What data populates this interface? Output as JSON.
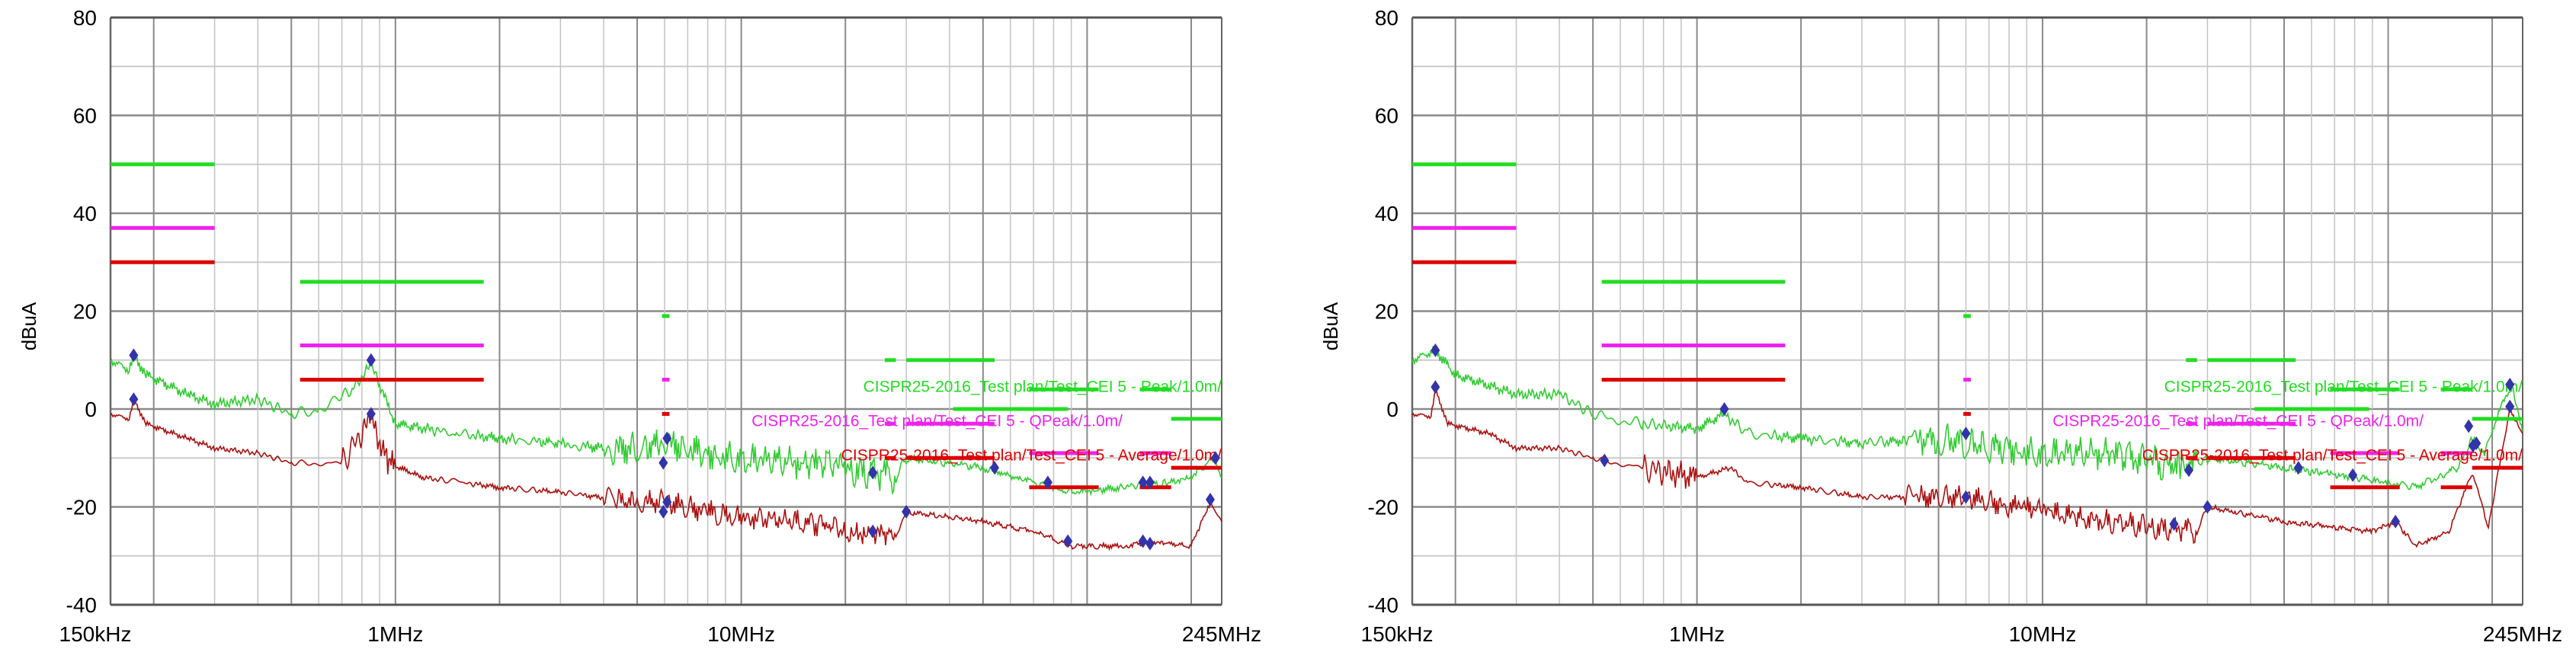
{
  "colors": {
    "peak": "#22dd22",
    "qpeak": "#ee22ee",
    "average": "#dd0000",
    "peak_trace": "#33cc33",
    "avg_trace": "#aa1111",
    "marker": "#3333aa"
  },
  "chart_data": [
    {
      "type": "line",
      "xscale": "log",
      "xlim_hz_label": [
        "150kHz",
        "245MHz"
      ],
      "xlim": [
        0.15,
        245
      ],
      "ylim": [
        -40,
        80
      ],
      "ylabel": "dBuA",
      "grid": true,
      "x_tick_labels": [
        "150kHz",
        "1MHz",
        "10MHz",
        "245MHz"
      ],
      "x_ticks": [
        0.15,
        1,
        10,
        245
      ],
      "y_ticks": [
        -40,
        -20,
        0,
        20,
        40,
        60,
        80
      ],
      "legend": [
        "CISPR25-2016_Test plan/Test_CEI 5 - Peak/1.0m/",
        "CISPR25-2016_Test plan/Test_CEI 5 - QPeak/1.0m/",
        "CISPR25-2016_Test plan/Test_CEI 5 - Average/1.0m/"
      ],
      "limits": {
        "peak": [
          [
            0.15,
            0.3,
            50
          ],
          [
            0.53,
            1.8,
            26
          ],
          [
            5.9,
            6.2,
            19
          ],
          [
            26,
            28,
            10
          ],
          [
            30,
            54,
            10
          ],
          [
            41,
            88,
            0
          ],
          [
            68,
            108,
            4
          ],
          [
            142,
            175,
            4
          ],
          [
            175,
            245,
            -2
          ]
        ],
        "qpeak": [
          [
            0.15,
            0.3,
            37
          ],
          [
            0.53,
            1.8,
            13
          ],
          [
            5.9,
            6.2,
            6
          ],
          [
            26,
            28,
            -3
          ],
          [
            30,
            54,
            -3
          ],
          [
            68,
            108,
            -9
          ],
          [
            142,
            175,
            -9
          ]
        ],
        "average": [
          [
            0.15,
            0.3,
            30
          ],
          [
            0.53,
            1.8,
            6
          ],
          [
            5.9,
            6.2,
            -1
          ],
          [
            26,
            28,
            -10
          ],
          [
            30,
            54,
            -10
          ],
          [
            68,
            108,
            -16
          ],
          [
            142,
            175,
            -16
          ],
          [
            175,
            245,
            -12
          ]
        ]
      },
      "peak_trace": [
        [
          0.15,
          10
        ],
        [
          0.17,
          8
        ],
        [
          0.175,
          11
        ],
        [
          0.19,
          7
        ],
        [
          0.25,
          3
        ],
        [
          0.3,
          1
        ],
        [
          0.4,
          2
        ],
        [
          0.5,
          -1
        ],
        [
          0.6,
          0
        ],
        [
          0.75,
          4
        ],
        [
          0.85,
          9
        ],
        [
          0.9,
          5
        ],
        [
          1.0,
          -3
        ],
        [
          1.5,
          -5
        ],
        [
          2,
          -6
        ],
        [
          3,
          -7
        ],
        [
          4,
          -8
        ],
        [
          5,
          -8
        ],
        [
          6,
          -7
        ],
        [
          8,
          -9
        ],
        [
          10,
          -10
        ],
        [
          15,
          -11
        ],
        [
          20,
          -12
        ],
        [
          28,
          -14
        ],
        [
          30,
          -10
        ],
        [
          50,
          -12
        ],
        [
          70,
          -15
        ],
        [
          90,
          -17
        ],
        [
          130,
          -16
        ],
        [
          170,
          -15
        ],
        [
          200,
          -14
        ],
        [
          235,
          -10
        ],
        [
          245,
          -14
        ]
      ],
      "average_trace": [
        [
          0.15,
          -1
        ],
        [
          0.17,
          -2
        ],
        [
          0.175,
          2
        ],
        [
          0.19,
          -3
        ],
        [
          0.25,
          -6
        ],
        [
          0.3,
          -8
        ],
        [
          0.4,
          -9
        ],
        [
          0.5,
          -11
        ],
        [
          0.7,
          -11
        ],
        [
          0.85,
          -2
        ],
        [
          0.95,
          -11
        ],
        [
          1.2,
          -14
        ],
        [
          2,
          -16
        ],
        [
          3,
          -17
        ],
        [
          5,
          -19
        ],
        [
          6,
          -19
        ],
        [
          8,
          -21
        ],
        [
          10,
          -22
        ],
        [
          15,
          -23
        ],
        [
          20,
          -25
        ],
        [
          28,
          -26
        ],
        [
          30,
          -21
        ],
        [
          50,
          -23
        ],
        [
          70,
          -25
        ],
        [
          90,
          -28
        ],
        [
          130,
          -28
        ],
        [
          160,
          -27
        ],
        [
          200,
          -28
        ],
        [
          227,
          -19
        ],
        [
          245,
          -23
        ]
      ],
      "markers": [
        [
          0.175,
          11
        ],
        [
          0.85,
          10
        ],
        [
          5.95,
          -11
        ],
        [
          6.1,
          -6
        ],
        [
          24,
          -13
        ],
        [
          54,
          -12
        ],
        [
          77,
          -15
        ],
        [
          145,
          -15
        ],
        [
          152,
          -15
        ],
        [
          0.175,
          2
        ],
        [
          0.85,
          -1
        ],
        [
          5.95,
          -21
        ],
        [
          6.1,
          -19
        ],
        [
          24,
          -25
        ],
        [
          30,
          -21
        ],
        [
          88,
          -27
        ],
        [
          145,
          -27
        ],
        [
          152,
          -27.5
        ],
        [
          227,
          -18.5
        ],
        [
          235,
          -10
        ]
      ]
    },
    {
      "type": "line",
      "xscale": "log",
      "xlim": [
        0.15,
        245
      ],
      "ylim": [
        -40,
        80
      ],
      "ylabel": "dBuA",
      "grid": true,
      "x_tick_labels": [
        "150kHz",
        "1MHz",
        "10MHz",
        "245MHz"
      ],
      "x_ticks": [
        0.15,
        1,
        10,
        245
      ],
      "y_ticks": [
        -40,
        -20,
        0,
        20,
        40,
        60,
        80
      ],
      "legend": [
        "CISPR25-2016_Test plan/Test_CEI 5 - Peak/1.0m/",
        "CISPR25-2016_Test plan/Test_CEI 5 - QPeak/1.0m/",
        "CISPR25-2016_Test plan/Test_CEI 5 - Average/1.0m/"
      ],
      "limits": {
        "peak": [
          [
            0.15,
            0.3,
            50
          ],
          [
            0.53,
            1.8,
            26
          ],
          [
            5.9,
            6.2,
            19
          ],
          [
            26,
            28,
            10
          ],
          [
            30,
            54,
            10
          ],
          [
            41,
            88,
            0
          ],
          [
            68,
            108,
            4
          ],
          [
            142,
            175,
            4
          ],
          [
            175,
            245,
            -2
          ]
        ],
        "qpeak": [
          [
            0.15,
            0.3,
            37
          ],
          [
            0.53,
            1.8,
            13
          ],
          [
            5.9,
            6.2,
            6
          ],
          [
            26,
            28,
            -3
          ],
          [
            30,
            54,
            -3
          ],
          [
            68,
            108,
            -9
          ],
          [
            142,
            175,
            -9
          ]
        ],
        "average": [
          [
            0.15,
            0.3,
            30
          ],
          [
            0.53,
            1.8,
            6
          ],
          [
            5.9,
            6.2,
            -1
          ],
          [
            26,
            28,
            -10
          ],
          [
            30,
            54,
            -10
          ],
          [
            68,
            108,
            -16
          ],
          [
            142,
            175,
            -16
          ],
          [
            175,
            245,
            -12
          ]
        ]
      },
      "peak_trace": [
        [
          0.15,
          10
        ],
        [
          0.175,
          12
        ],
        [
          0.2,
          7
        ],
        [
          0.3,
          3
        ],
        [
          0.4,
          3
        ],
        [
          0.5,
          -1
        ],
        [
          0.7,
          -3
        ],
        [
          1,
          -4
        ],
        [
          1.2,
          -1
        ],
        [
          1.4,
          -5
        ],
        [
          2,
          -6
        ],
        [
          3,
          -7
        ],
        [
          5,
          -6
        ],
        [
          8,
          -8
        ],
        [
          10,
          -9
        ],
        [
          15,
          -9
        ],
        [
          25,
          -12
        ],
        [
          30,
          -10
        ],
        [
          50,
          -12
        ],
        [
          80,
          -14
        ],
        [
          120,
          -16
        ],
        [
          160,
          -12
        ],
        [
          175,
          -6
        ],
        [
          190,
          -9
        ],
        [
          215,
          2
        ],
        [
          230,
          4
        ],
        [
          245,
          -5
        ]
      ],
      "average_trace": [
        [
          0.15,
          -1
        ],
        [
          0.17,
          -1.5
        ],
        [
          0.175,
          4
        ],
        [
          0.19,
          -3
        ],
        [
          0.25,
          -5
        ],
        [
          0.3,
          -8
        ],
        [
          0.4,
          -8
        ],
        [
          0.5,
          -10
        ],
        [
          0.7,
          -12
        ],
        [
          1,
          -14
        ],
        [
          1.25,
          -12
        ],
        [
          1.4,
          -15
        ],
        [
          2,
          -16
        ],
        [
          3,
          -18
        ],
        [
          6,
          -18
        ],
        [
          10,
          -21
        ],
        [
          20,
          -24
        ],
        [
          28,
          -25
        ],
        [
          30,
          -20
        ],
        [
          50,
          -23
        ],
        [
          90,
          -25
        ],
        [
          105,
          -23
        ],
        [
          120,
          -28
        ],
        [
          150,
          -25
        ],
        [
          175,
          -13
        ],
        [
          195,
          -24
        ],
        [
          225,
          0
        ],
        [
          245,
          -5
        ]
      ],
      "markers": [
        [
          0.175,
          12
        ],
        [
          1.2,
          0
        ],
        [
          6.0,
          -5
        ],
        [
          26.5,
          -12.5
        ],
        [
          55,
          -12
        ],
        [
          79,
          -13.5
        ],
        [
          171,
          -3.5
        ],
        [
          176,
          -7.5
        ],
        [
          180,
          -7
        ],
        [
          225,
          5
        ],
        [
          0.175,
          4.5
        ],
        [
          0.54,
          -10.5
        ],
        [
          6.0,
          -18
        ],
        [
          24,
          -23.5
        ],
        [
          30,
          -20
        ],
        [
          105,
          -23
        ],
        [
          225,
          0.5
        ]
      ]
    }
  ]
}
